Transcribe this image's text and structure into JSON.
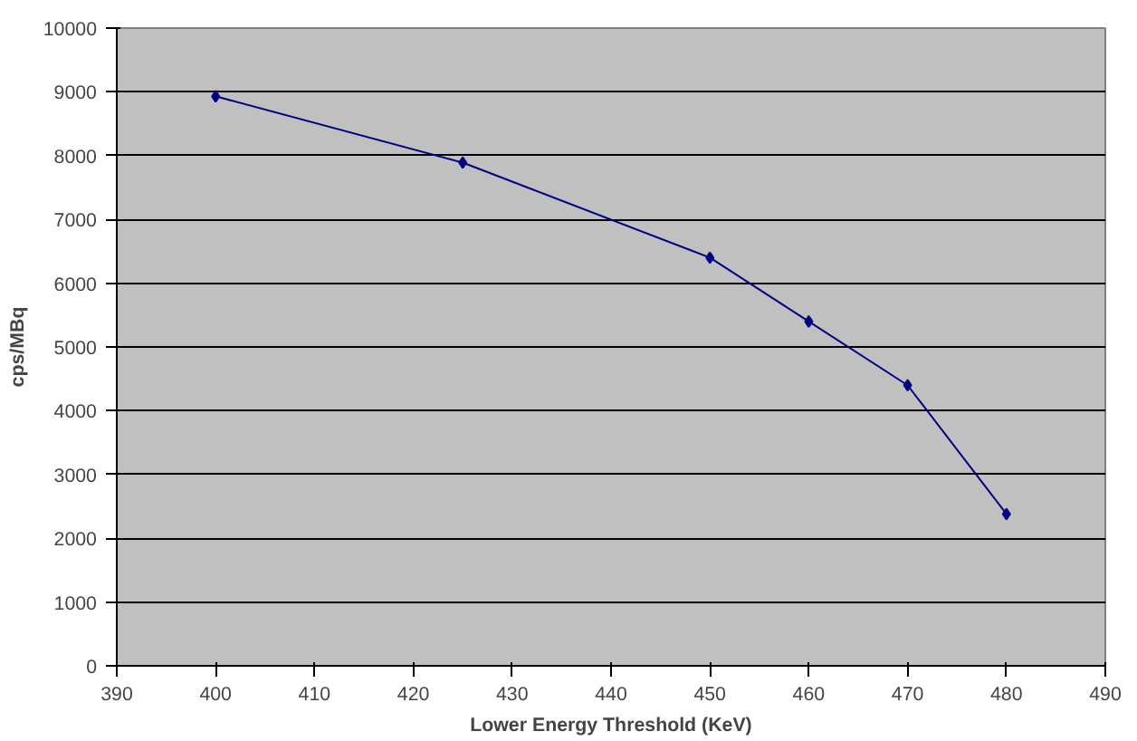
{
  "chart_data": {
    "type": "line",
    "xlabel": "Lower Energy Threshold (KeV)",
    "ylabel": "cps/MBq",
    "x": [
      400,
      425,
      450,
      460,
      470,
      480
    ],
    "series": [
      {
        "color": "#000080",
        "values": [
          8930,
          7890,
          6400,
          5400,
          4400,
          2380
        ]
      }
    ],
    "xlim": [
      390,
      490
    ],
    "xticks": [
      390,
      400,
      410,
      420,
      430,
      440,
      450,
      460,
      470,
      480,
      490
    ],
    "ylim": [
      0,
      10000
    ],
    "yticks": [
      0,
      1000,
      2000,
      3000,
      4000,
      5000,
      6000,
      7000,
      8000,
      9000,
      10000
    ],
    "grid": "y",
    "marker": "diamond",
    "line_style": "solid"
  }
}
